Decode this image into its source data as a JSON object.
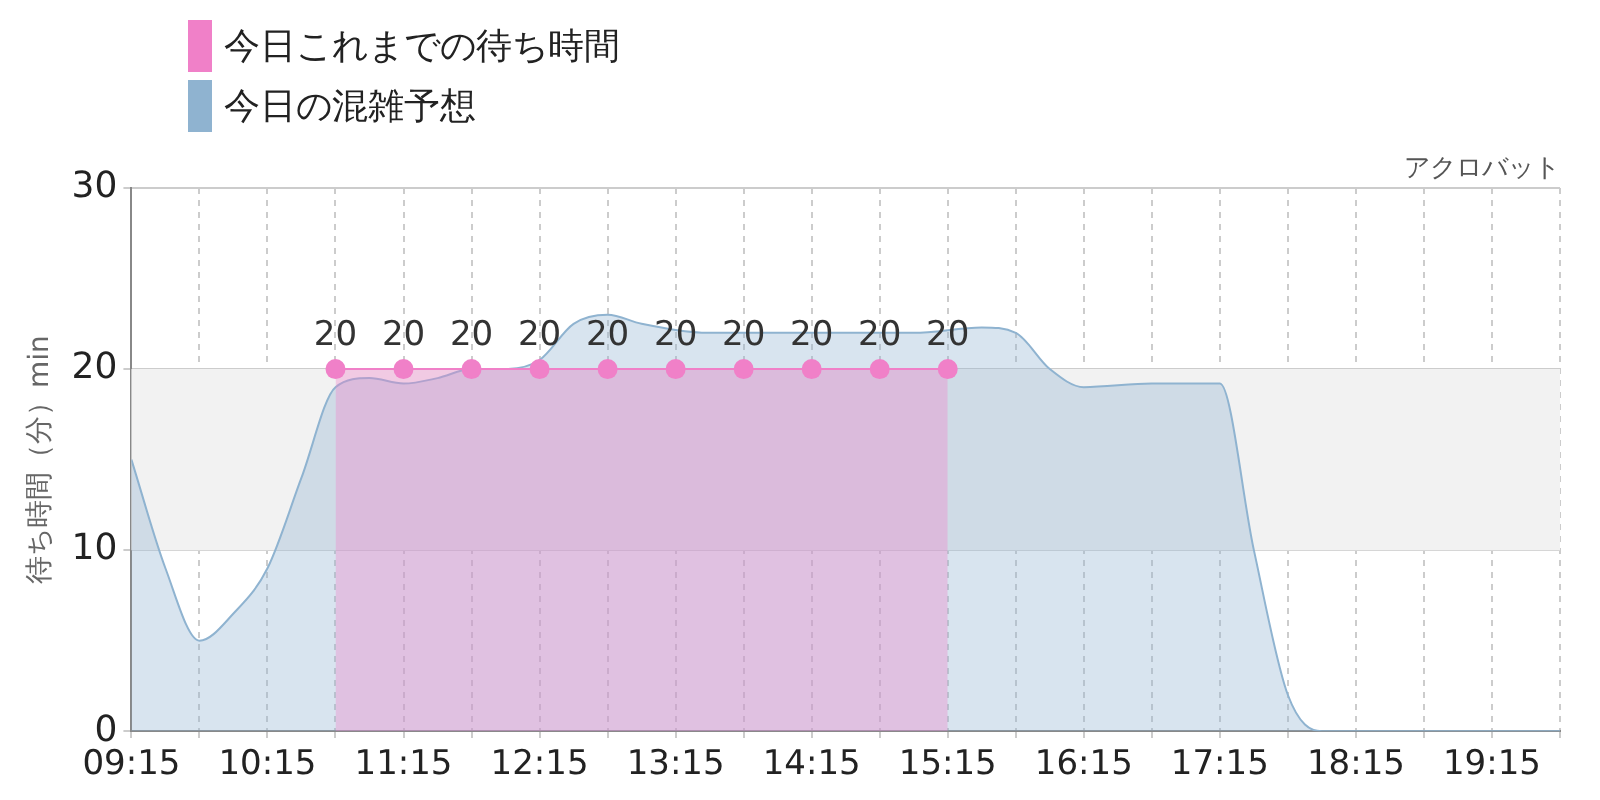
{
  "chart_data": {
    "type": "area",
    "ylabel": "待ち時間（分）min",
    "annotations": [
      "アクロバット"
    ],
    "legend": "top left",
    "grid": true,
    "xlim": [
      9.25,
      19.75
    ],
    "ylim": [
      0,
      30
    ],
    "yticks": [
      0,
      10,
      20,
      30
    ],
    "xticks": [
      {
        "value": 9.25,
        "label": "09:15"
      },
      {
        "value": 9.75,
        "label": null
      },
      {
        "value": 10.25,
        "label": "10:15"
      },
      {
        "value": 10.75,
        "label": null
      },
      {
        "value": 11.25,
        "label": "11:15"
      },
      {
        "value": 11.75,
        "label": null
      },
      {
        "value": 12.25,
        "label": "12:15"
      },
      {
        "value": 12.75,
        "label": null
      },
      {
        "value": 13.25,
        "label": "13:15"
      },
      {
        "value": 13.75,
        "label": null
      },
      {
        "value": 14.25,
        "label": "14:15"
      },
      {
        "value": 14.75,
        "label": null
      },
      {
        "value": 15.25,
        "label": "15:15"
      },
      {
        "value": 15.75,
        "label": null
      },
      {
        "value": 16.25,
        "label": "16:15"
      },
      {
        "value": 16.75,
        "label": null
      },
      {
        "value": 17.25,
        "label": "17:15"
      },
      {
        "value": 17.75,
        "label": null
      },
      {
        "value": 18.25,
        "label": "18:15"
      },
      {
        "value": 18.75,
        "label": null
      },
      {
        "value": 19.25,
        "label": "19:15"
      },
      {
        "value": 19.75,
        "label": null
      }
    ],
    "bands": [
      {
        "axis": "y",
        "from": 10,
        "to": 20,
        "color": "#f2f2f2"
      }
    ],
    "series": [
      {
        "name": "今日これまでの待ち時間",
        "color": "#f080c8",
        "marker": "circle",
        "data_labels": true,
        "x": [
          10.75,
          11.25,
          11.75,
          12.25,
          12.75,
          13.25,
          13.75,
          14.25,
          14.75,
          15.25
        ],
        "values": [
          20,
          20,
          20,
          20,
          20,
          20,
          20,
          20,
          20,
          20
        ]
      },
      {
        "name": "今日の混雑予想",
        "color": "#8fb3d0",
        "marker": "none",
        "x": [
          9.25,
          9.5,
          9.75,
          10,
          10.25,
          10.5,
          10.75,
          11,
          11.25,
          11.5,
          11.75,
          12,
          12.25,
          12.5,
          12.75,
          13,
          13.5,
          14,
          14.5,
          15,
          15.5,
          15.75,
          16,
          16.25,
          16.75,
          17.25,
          17.5,
          17.75,
          18,
          18.25,
          19.75
        ],
        "values": [
          15,
          9,
          5,
          6.5,
          9,
          14,
          19,
          19.5,
          19.2,
          19.5,
          20,
          20,
          20.5,
          22.5,
          23,
          22.5,
          22,
          22,
          22,
          22,
          22.3,
          22,
          20,
          19,
          19.2,
          19.2,
          10,
          2,
          0,
          0,
          0
        ]
      }
    ]
  }
}
